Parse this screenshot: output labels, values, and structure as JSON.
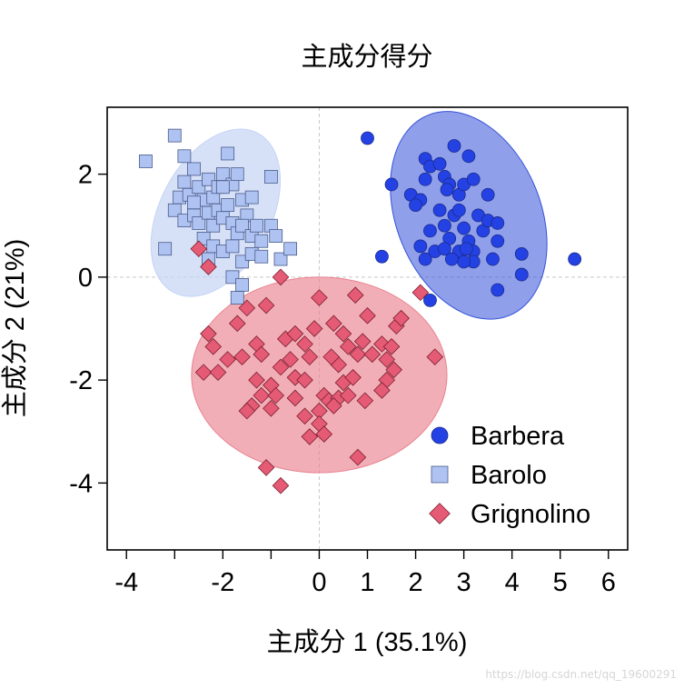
{
  "chart_data": {
    "type": "scatter",
    "title": "主成分得分",
    "xlabel": "主成分 1 (35.1%)",
    "ylabel": "主成分 2 (21%)",
    "xlim": [
      -4.4,
      6.4
    ],
    "ylim": [
      -5.3,
      3.3
    ],
    "x_ticks": [
      -4,
      -3,
      -2,
      -1,
      0,
      1,
      2,
      3,
      4,
      5,
      6
    ],
    "x_tick_labels": [
      "-4",
      "",
      "-2",
      "",
      "0",
      "1",
      "2",
      "3",
      "4",
      "5",
      "6"
    ],
    "y_ticks": [
      -4,
      -2,
      0,
      2
    ],
    "y_tick_labels": [
      "-4",
      "-2",
      "0",
      "2"
    ],
    "reference_lines": {
      "x": 0,
      "y": 0
    },
    "legend_position": "bottom-right",
    "series": [
      {
        "name": "Barbera",
        "color": "#2442e4",
        "marker": "circle",
        "ellipse": {
          "cx": 3.1,
          "cy": 1.2,
          "rx": 1.5,
          "ry": 2.1,
          "angle": -22,
          "fill": "#3451d8",
          "opacity": 0.55
        },
        "points": [
          [
            1.0,
            2.7
          ],
          [
            1.3,
            0.4
          ],
          [
            1.5,
            1.8
          ],
          [
            1.9,
            1.6
          ],
          [
            2.1,
            1.5
          ],
          [
            2.2,
            2.3
          ],
          [
            2.2,
            1.9
          ],
          [
            2.3,
            2.15
          ],
          [
            2.5,
            2.2
          ],
          [
            2.6,
            1.95
          ],
          [
            2.7,
            1.8
          ],
          [
            2.8,
            2.55
          ],
          [
            2.9,
            1.6
          ],
          [
            3.0,
            1.8
          ],
          [
            3.1,
            2.35
          ],
          [
            3.2,
            1.9
          ],
          [
            3.5,
            1.6
          ],
          [
            2.1,
            0.6
          ],
          [
            2.3,
            0.9
          ],
          [
            2.5,
            1.3
          ],
          [
            2.6,
            1.0
          ],
          [
            2.7,
            0.75
          ],
          [
            2.8,
            1.2
          ],
          [
            2.9,
            0.5
          ],
          [
            3.0,
            0.95
          ],
          [
            3.1,
            0.7
          ],
          [
            3.2,
            0.5
          ],
          [
            3.3,
            1.2
          ],
          [
            3.4,
            0.9
          ],
          [
            3.5,
            1.1
          ],
          [
            3.7,
            1.05
          ],
          [
            3.7,
            0.7
          ],
          [
            3.6,
            0.35
          ],
          [
            3.2,
            0.3
          ],
          [
            2.4,
            0.5
          ],
          [
            2.2,
            0.35
          ],
          [
            2.0,
            1.4
          ],
          [
            2.6,
            0.55
          ],
          [
            3.0,
            0.3
          ],
          [
            3.7,
            -0.25
          ],
          [
            4.2,
            0.05
          ],
          [
            4.2,
            0.45
          ],
          [
            5.3,
            0.35
          ],
          [
            2.3,
            -0.45
          ],
          [
            2.65,
            1.7
          ],
          [
            2.9,
            1.3
          ],
          [
            3.05,
            0.55
          ],
          [
            2.75,
            0.35
          ]
        ]
      },
      {
        "name": "Barolo",
        "color": "#aec3f2",
        "marker": "square",
        "ellipse": {
          "cx": -2.15,
          "cy": 1.25,
          "rx": 1.15,
          "ry": 1.75,
          "angle": 28,
          "fill": "#c5d4f5",
          "opacity": 0.7
        },
        "points": [
          [
            -3.6,
            2.25
          ],
          [
            -3.0,
            2.75
          ],
          [
            -2.8,
            2.35
          ],
          [
            -2.6,
            2.1
          ],
          [
            -2.8,
            1.85
          ],
          [
            -2.9,
            1.55
          ],
          [
            -3.0,
            1.3
          ],
          [
            -2.7,
            1.6
          ],
          [
            -2.5,
            1.75
          ],
          [
            -2.4,
            1.5
          ],
          [
            -2.3,
            1.9
          ],
          [
            -2.2,
            1.55
          ],
          [
            -2.1,
            1.75
          ],
          [
            -2.0,
            2.0
          ],
          [
            -1.9,
            2.4
          ],
          [
            -1.8,
            1.8
          ],
          [
            -1.7,
            2.0
          ],
          [
            -1.6,
            1.5
          ],
          [
            -1.5,
            1.2
          ],
          [
            -1.0,
            1.95
          ],
          [
            -2.8,
            1.1
          ],
          [
            -2.6,
            1.2
          ],
          [
            -2.5,
            1.05
          ],
          [
            -2.3,
            1.25
          ],
          [
            -2.2,
            1.0
          ],
          [
            -2.1,
            1.3
          ],
          [
            -2.0,
            1.15
          ],
          [
            -1.9,
            1.4
          ],
          [
            -1.8,
            1.05
          ],
          [
            -1.7,
            0.85
          ],
          [
            -1.6,
            1.0
          ],
          [
            -1.4,
            0.8
          ],
          [
            -1.3,
            1.0
          ],
          [
            -1.2,
            0.7
          ],
          [
            -1.0,
            1.0
          ],
          [
            -0.9,
            0.8
          ],
          [
            -2.4,
            0.75
          ],
          [
            -2.2,
            0.6
          ],
          [
            -2.0,
            0.5
          ],
          [
            -1.8,
            0.6
          ],
          [
            -1.6,
            0.3
          ],
          [
            -1.4,
            0.45
          ],
          [
            -1.2,
            0.4
          ],
          [
            -0.8,
            0.35
          ],
          [
            -0.6,
            0.55
          ],
          [
            -2.3,
            0.35
          ],
          [
            -3.2,
            0.55
          ],
          [
            -1.8,
            0.0
          ],
          [
            -1.6,
            -0.15
          ],
          [
            -1.7,
            -0.4
          ],
          [
            -2.6,
            1.45
          ],
          [
            -1.4,
            1.55
          ],
          [
            -2.0,
            1.75
          ]
        ]
      },
      {
        "name": "Grignolino",
        "color": "#e55a74",
        "marker": "diamond",
        "ellipse": {
          "cx": 0.0,
          "cy": -1.9,
          "rx": 2.65,
          "ry": 1.9,
          "angle": 0,
          "fill": "#e9828f",
          "opacity": 0.65
        },
        "points": [
          [
            -2.5,
            0.55
          ],
          [
            -2.3,
            0.2
          ],
          [
            -0.8,
            0.0
          ],
          [
            -1.1,
            -0.55
          ],
          [
            -1.5,
            -0.6
          ],
          [
            -1.7,
            -0.9
          ],
          [
            -2.3,
            -1.1
          ],
          [
            -2.2,
            -1.35
          ],
          [
            -1.3,
            -1.3
          ],
          [
            -1.6,
            -1.55
          ],
          [
            -1.2,
            -1.5
          ],
          [
            -1.9,
            -1.6
          ],
          [
            -2.4,
            -1.85
          ],
          [
            -2.1,
            -1.85
          ],
          [
            -0.7,
            -1.2
          ],
          [
            -0.5,
            -1.1
          ],
          [
            -0.3,
            -1.3
          ],
          [
            -0.6,
            -1.6
          ],
          [
            -0.8,
            -1.75
          ],
          [
            -0.5,
            -1.95
          ],
          [
            -1.0,
            -2.1
          ],
          [
            -1.3,
            -2.0
          ],
          [
            -1.2,
            -2.3
          ],
          [
            -1.4,
            -2.5
          ],
          [
            -1.0,
            -2.55
          ],
          [
            -0.5,
            -2.35
          ],
          [
            -0.3,
            -2.7
          ],
          [
            0.0,
            -2.6
          ],
          [
            0.1,
            -2.3
          ],
          [
            0.0,
            -2.85
          ],
          [
            -0.2,
            -3.1
          ],
          [
            0.1,
            -3.05
          ],
          [
            0.2,
            -2.4
          ],
          [
            0.4,
            -2.35
          ],
          [
            0.5,
            -2.05
          ],
          [
            0.7,
            -1.95
          ],
          [
            0.4,
            -1.7
          ],
          [
            0.8,
            -1.5
          ],
          [
            0.6,
            -1.35
          ],
          [
            0.5,
            -1.1
          ],
          [
            0.3,
            -0.9
          ],
          [
            0.0,
            -0.4
          ],
          [
            0.75,
            -0.35
          ],
          [
            1.0,
            -0.75
          ],
          [
            0.9,
            -1.25
          ],
          [
            1.1,
            -1.5
          ],
          [
            1.3,
            -1.3
          ],
          [
            1.4,
            -1.6
          ],
          [
            1.5,
            -1.35
          ],
          [
            1.6,
            -0.95
          ],
          [
            1.7,
            -0.8
          ],
          [
            1.55,
            -1.8
          ],
          [
            1.4,
            -2.0
          ],
          [
            1.3,
            -2.2
          ],
          [
            0.95,
            -2.4
          ],
          [
            0.8,
            -3.5
          ],
          [
            2.1,
            -0.3
          ],
          [
            2.4,
            -1.55
          ],
          [
            -1.1,
            -3.7
          ],
          [
            -0.8,
            -4.05
          ],
          [
            -0.2,
            -1.55
          ],
          [
            -0.1,
            -1.0
          ],
          [
            -0.3,
            -2.0
          ],
          [
            0.25,
            -1.55
          ],
          [
            -0.9,
            -2.3
          ],
          [
            -1.5,
            -2.6
          ],
          [
            0.3,
            -2.5
          ],
          [
            0.6,
            -2.3
          ]
        ]
      }
    ]
  },
  "watermark": "https://blog.csdn.net/qq_19600291"
}
